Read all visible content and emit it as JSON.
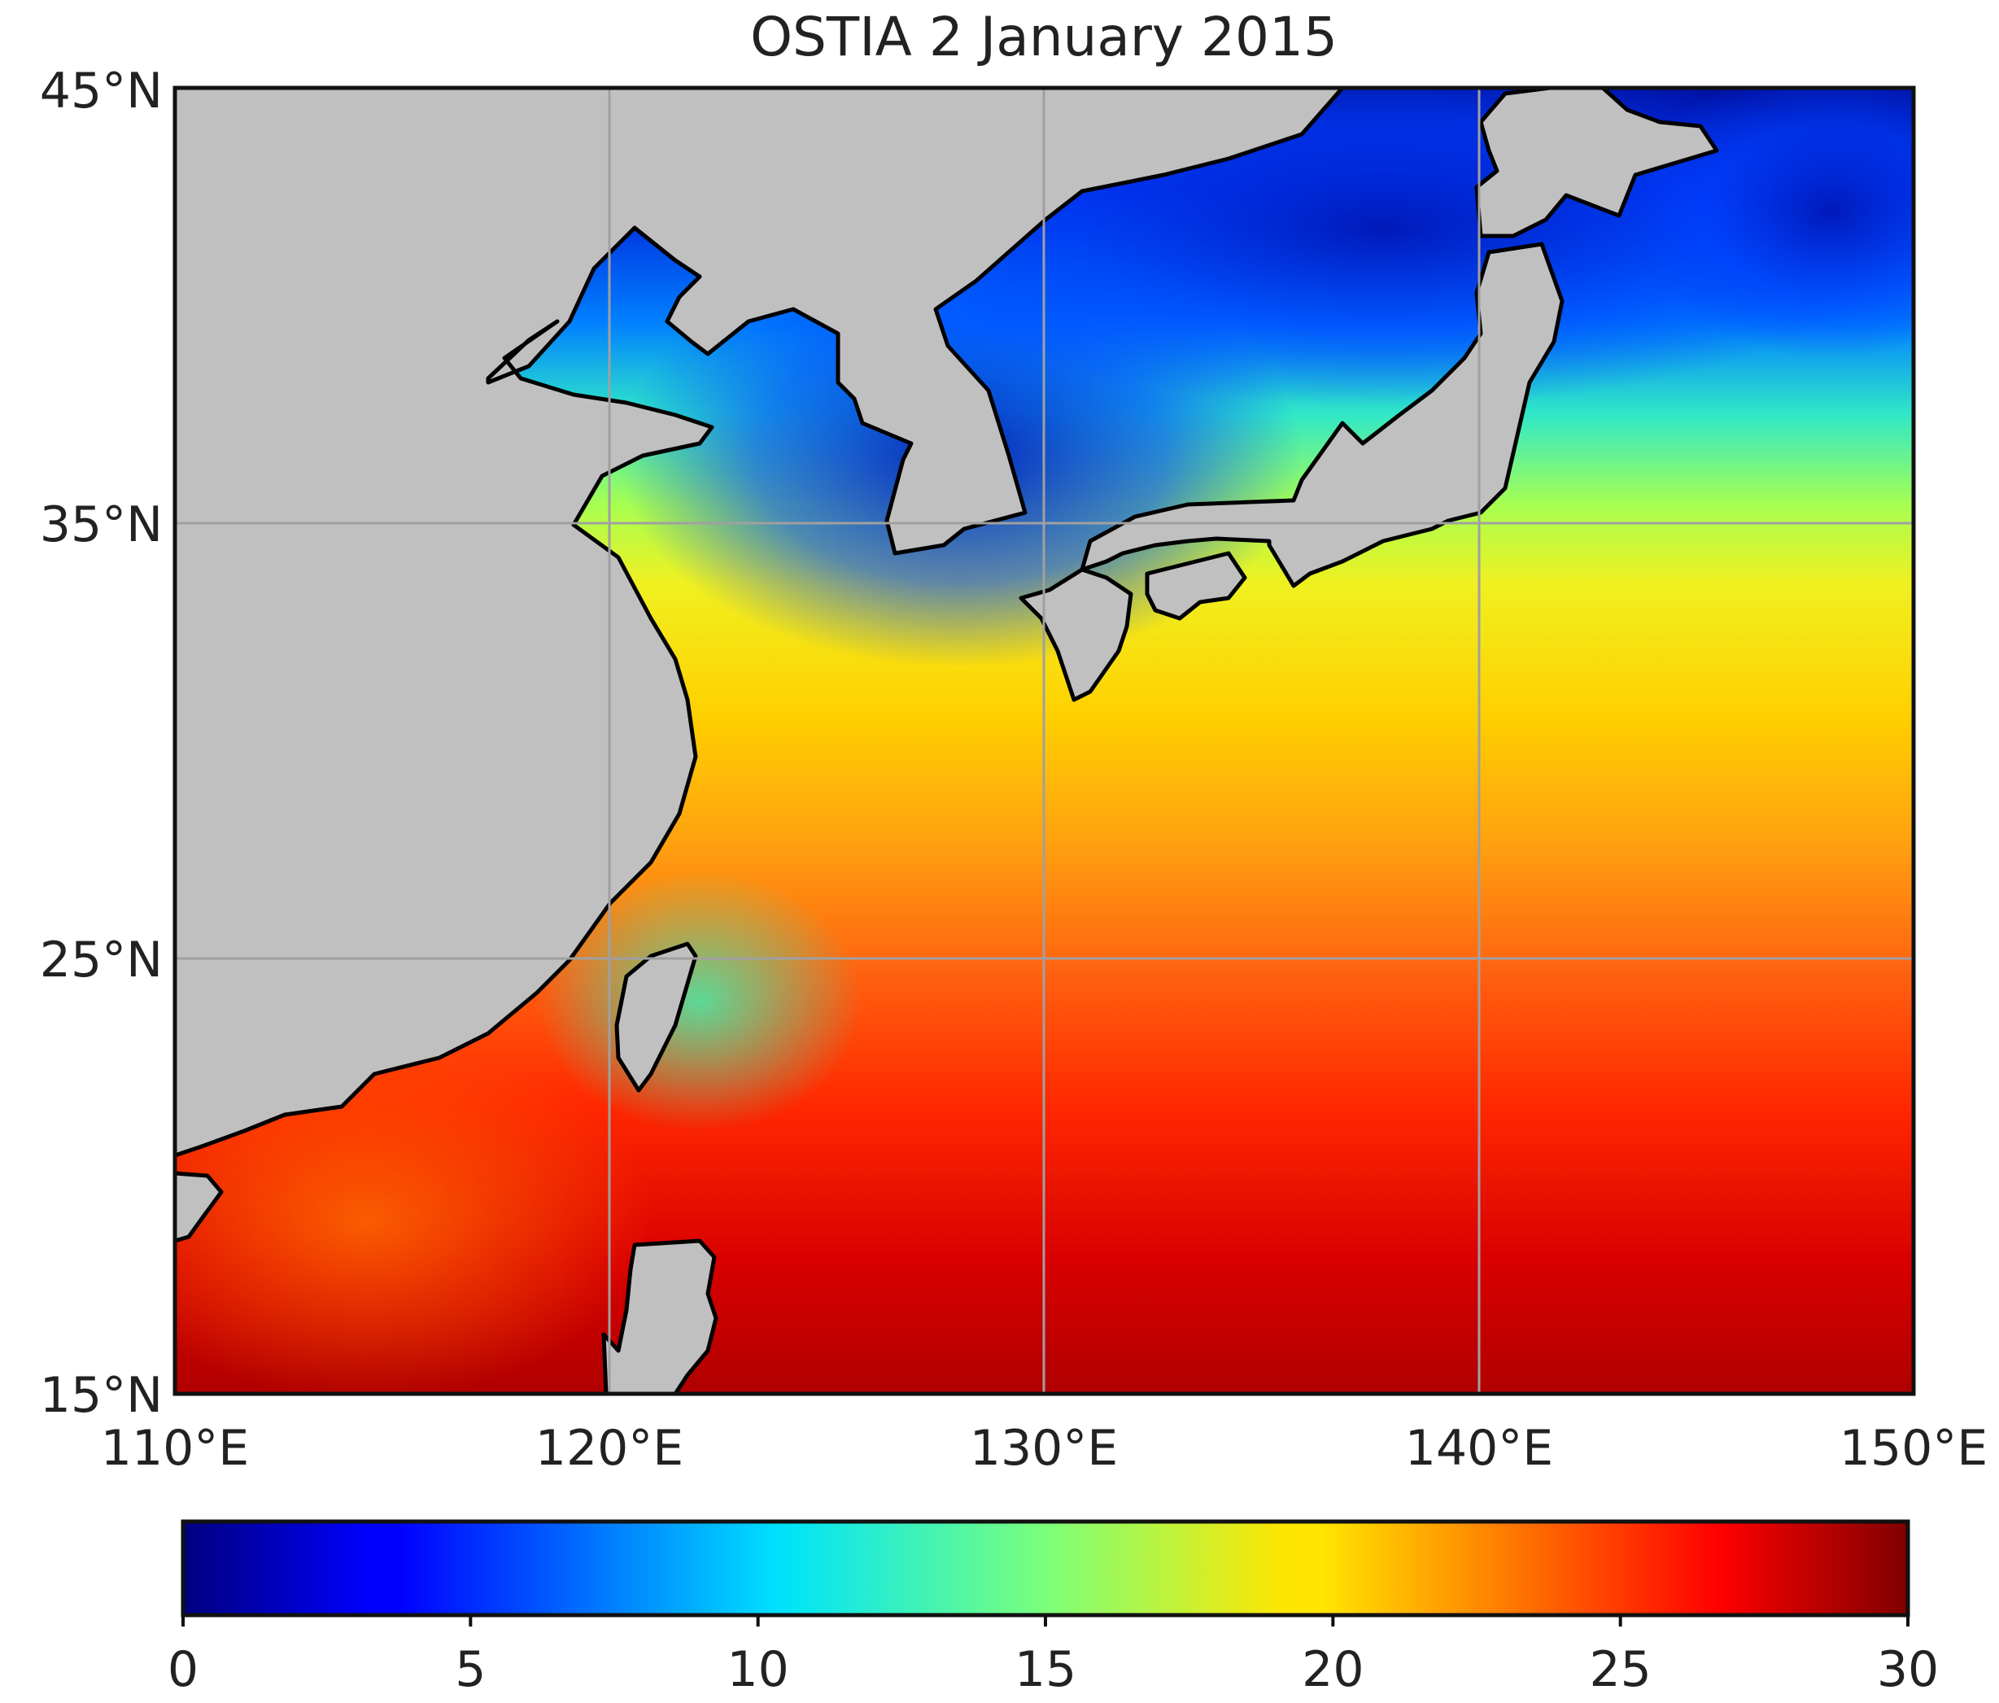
{
  "map": {
    "title": "OSTIA 2 January 2015",
    "lat_ticks": [
      "45°N",
      "35°N",
      "25°N",
      "15°N"
    ],
    "lon_ticks": [
      "110°E",
      "120°E",
      "130°E",
      "140°E",
      "150°E"
    ],
    "extent": {
      "lon": [
        110,
        150
      ],
      "lat": [
        15,
        45
      ]
    },
    "gridlines": true,
    "land_color": "#c0c0c0",
    "coastline_color": "#000000"
  },
  "colorbar": {
    "colormap": "jet",
    "range": [
      0,
      30
    ],
    "ticks": [
      "0",
      "5",
      "10",
      "15",
      "20",
      "25",
      "30"
    ]
  }
}
